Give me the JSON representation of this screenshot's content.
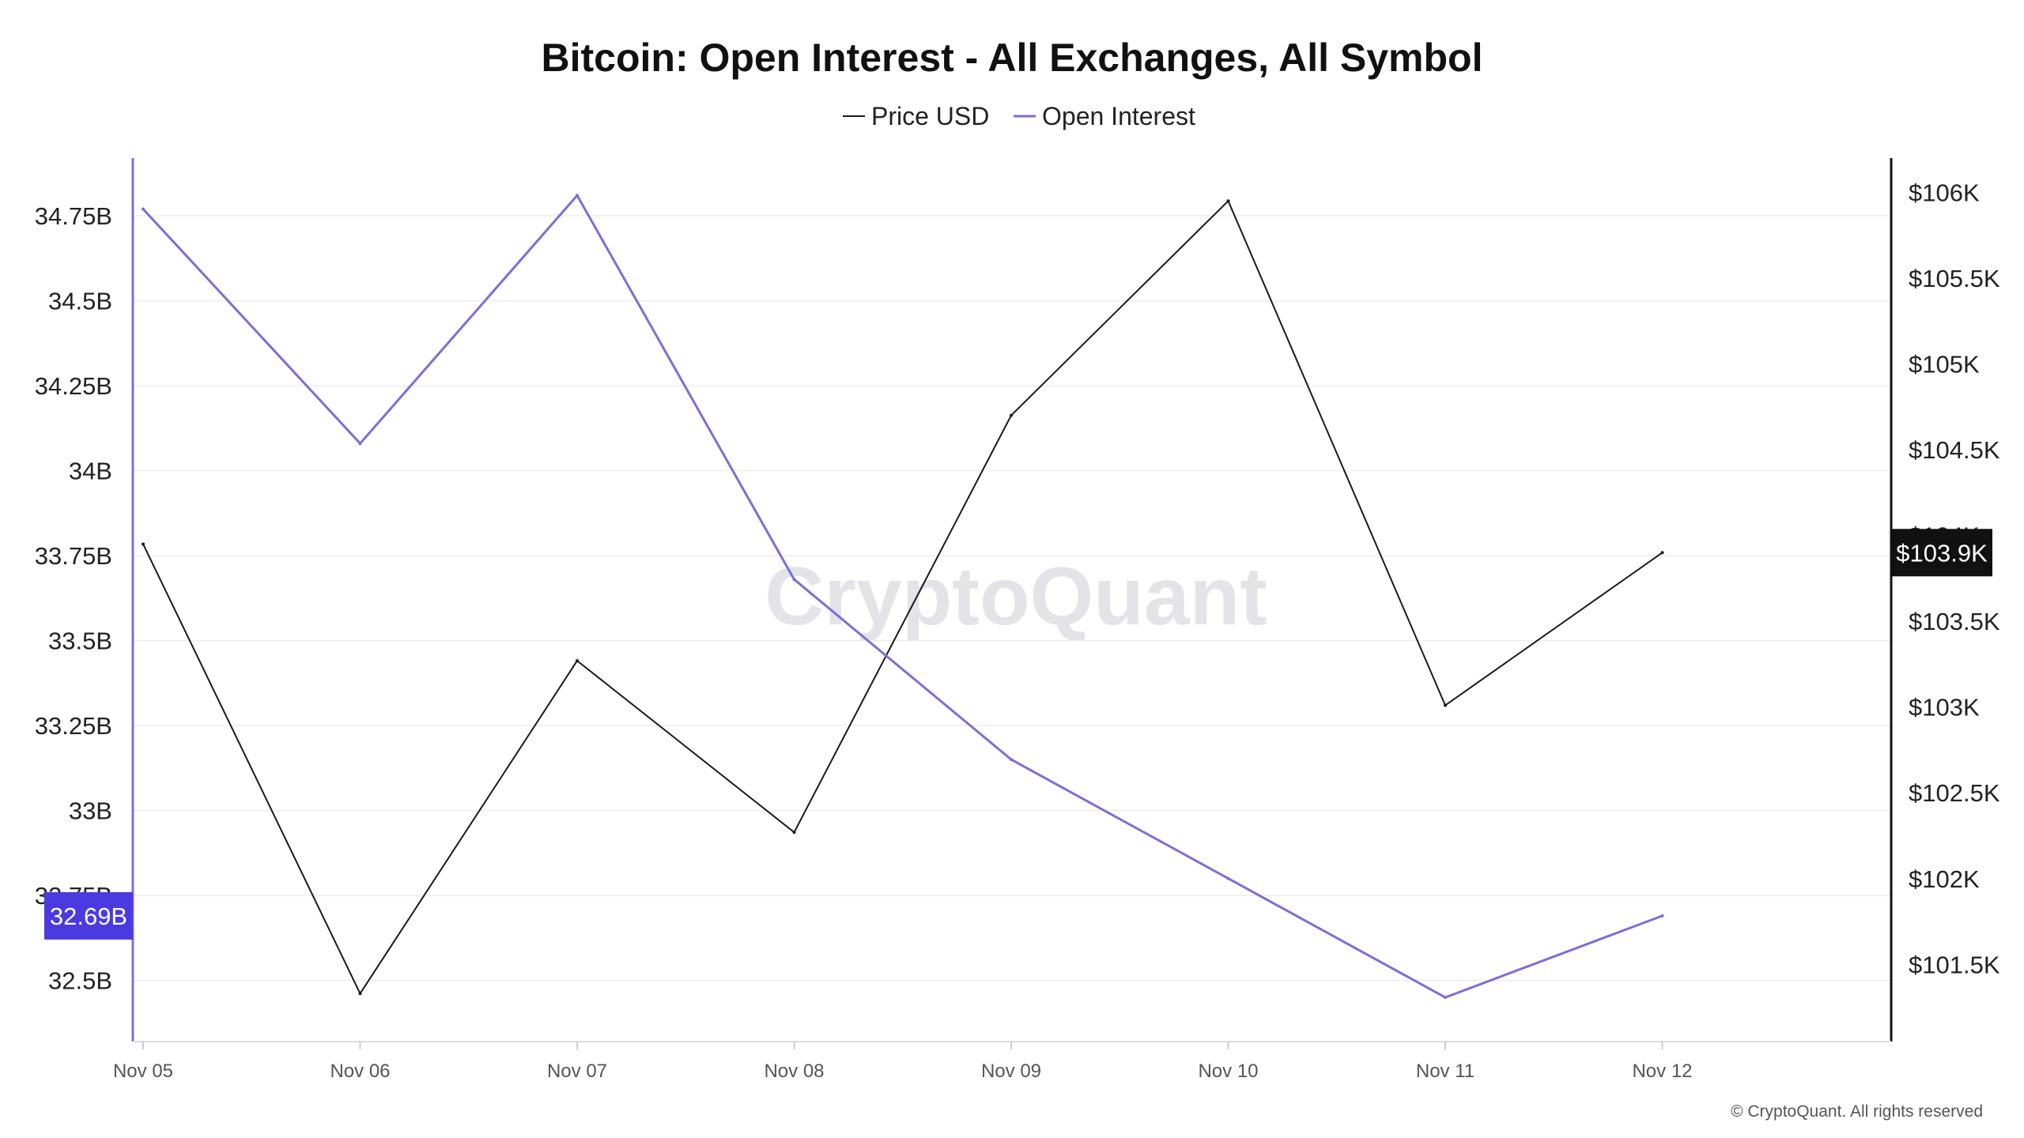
{
  "chart_data": {
    "type": "line",
    "title": "Bitcoin: Open Interest - All Exchanges, All Symbol",
    "legend": {
      "placement": "top-center",
      "entries": [
        "Price USD",
        "Open Interest"
      ]
    },
    "grid": true,
    "categories": [
      "Nov 05",
      "Nov 06",
      "Nov 07",
      "Nov 08",
      "Nov 09",
      "Nov 10",
      "Nov 11",
      "Nov 12"
    ],
    "series": [
      {
        "name": "Price USD",
        "axis": "right",
        "color": "#1a1a1a",
        "values": [
          103950,
          101330,
          103270,
          102270,
          104700,
          105950,
          103010,
          103900
        ]
      },
      {
        "name": "Open Interest",
        "axis": "left",
        "color": "#7b6fd6",
        "values": [
          34.77,
          34.08,
          34.81,
          33.68,
          33.15,
          32.8,
          32.45,
          32.69
        ]
      }
    ],
    "y_left": {
      "min": 32.32,
      "max": 34.92,
      "ticks": [
        34.75,
        34.5,
        34.25,
        34.0,
        33.75,
        33.5,
        33.25,
        33.0,
        32.75,
        32.5
      ],
      "tick_labels": [
        "34.75B",
        "34.5B",
        "34.25B",
        "34B",
        "33.75B",
        "33.5B",
        "33.25B",
        "33B",
        "32.75B",
        "32.5B"
      ]
    },
    "y_right": {
      "min": 101050,
      "max": 106200,
      "ticks": [
        106000,
        105500,
        105000,
        104500,
        104000,
        103500,
        103000,
        102500,
        102000,
        101500
      ],
      "tick_labels": [
        "$106K",
        "$105.5K",
        "$105K",
        "$104.5K",
        "$104K",
        "$103.5K",
        "$103K",
        "$102.5K",
        "$102K",
        "$101.5K"
      ]
    },
    "current_labels": {
      "left": {
        "text": "32.69B",
        "value": 32.69,
        "color": "#4b3ae0"
      },
      "right": {
        "text": "$103.9K",
        "value": 103900,
        "color": "#111111"
      }
    },
    "watermark": "CryptoQuant",
    "copyright": "© CryptoQuant. All rights reserved"
  }
}
